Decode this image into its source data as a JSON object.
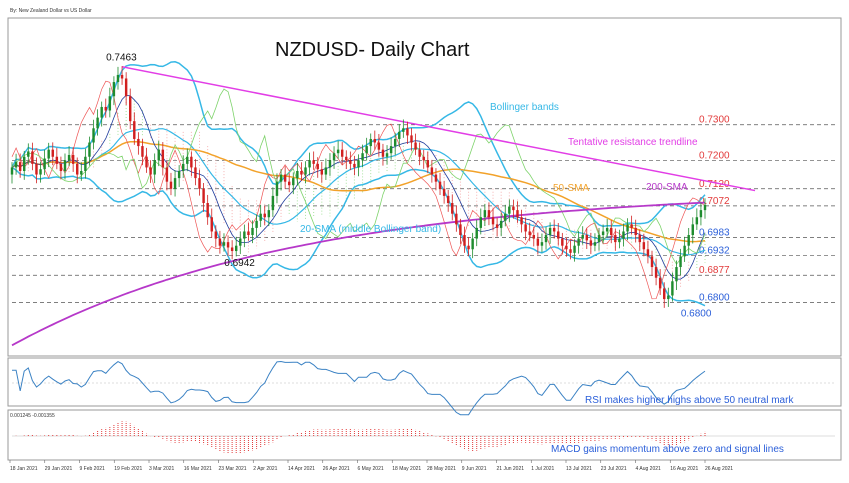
{
  "header": {
    "instrument": "By: New Zealand Dollar vs US Dollar"
  },
  "chart_data": {
    "type": "candlestick",
    "title": "NZDUSD- Daily Chart",
    "price_panel": {
      "ylim": [
        0.665,
        0.76
      ],
      "levels": [
        {
          "value": 0.73,
          "label": "0.7300",
          "color": "#e23b3b"
        },
        {
          "value": 0.72,
          "label": "0.7200",
          "color": "#e23b3b"
        },
        {
          "value": 0.712,
          "label": "0.7120",
          "color": "#e23b3b"
        },
        {
          "value": 0.7072,
          "label": "0.7072",
          "color": "#e23b3b"
        },
        {
          "value": 0.6983,
          "label": "0.6983",
          "color": "#2b5fd9"
        },
        {
          "value": 0.6932,
          "label": "0.6932",
          "color": "#2b5fd9"
        },
        {
          "value": 0.6877,
          "label": "0.6877",
          "color": "#e23b3b"
        },
        {
          "value": 0.68,
          "label": "0.6800",
          "color": "#2b5fd9"
        }
      ],
      "peak_labels": [
        {
          "date_index": 27,
          "value": 0.7463,
          "label": "0.7463"
        },
        {
          "date_index": 56,
          "value": 0.6942,
          "label": "0.6942"
        },
        {
          "date_index": 168,
          "value": 0.68,
          "label": "0.6800"
        }
      ],
      "annotations": {
        "bollinger": "Bollinger bands",
        "resistance": "Tentative resistance trendline",
        "sma50": "50-SMA",
        "sma200": "200-SMA",
        "sma20": "20-SMA (middle Bollinger band)"
      },
      "colors": {
        "bull": "#1e8c2e",
        "bear": "#d11f1f",
        "bollinger": "#36b8e6",
        "sma50": "#f2a22a",
        "sma200": "#b638c9",
        "trend": "#e23de6",
        "cloud": "#f5b3b3",
        "cloud_green": "#a9e3a0"
      }
    },
    "rsi_panel": {
      "annotation": "RSI makes higher highs above 50 neutral mark",
      "color": "#3b82c4"
    },
    "macd_panel": {
      "header": "0.001245 -0.001355",
      "annotation": "MACD gains momentum above zero and signal lines",
      "color": "#e23b3b"
    },
    "x_tick_labels": [
      "18 Jan 2021",
      "29 Jan 2021",
      "9 Feb 2021",
      "19 Feb 2021",
      "3 Mar 2021",
      "16 Mar 2021",
      "23 Mar 2021",
      "2 Apr 2021",
      "14 Apr 2021",
      "26 Apr 2021",
      "6 May 2021",
      "18 May 2021",
      "28 May 2021",
      "9 Jun 2021",
      "21 Jun 2021",
      "1 Jul 2021",
      "13 Jul 2021",
      "23 Jul 2021",
      "4 Aug 2021",
      "16 Aug 2021",
      "26 Aug 2021"
    ],
    "close": [
      0.718,
      0.7195,
      0.717,
      0.721,
      0.7225,
      0.719,
      0.716,
      0.7175,
      0.7205,
      0.723,
      0.721,
      0.719,
      0.717,
      0.72,
      0.7215,
      0.719,
      0.716,
      0.717,
      0.721,
      0.725,
      0.729,
      0.732,
      0.735,
      0.734,
      0.738,
      0.742,
      0.744,
      0.743,
      0.738,
      0.731,
      0.726,
      0.724,
      0.721,
      0.718,
      0.716,
      0.72,
      0.723,
      0.718,
      0.714,
      0.712,
      0.715,
      0.717,
      0.719,
      0.721,
      0.718,
      0.715,
      0.712,
      0.708,
      0.704,
      0.7,
      0.698,
      0.696,
      0.697,
      0.6955,
      0.6945,
      0.696,
      0.698,
      0.7,
      0.699,
      0.701,
      0.703,
      0.705,
      0.704,
      0.706,
      0.71,
      0.714,
      0.716,
      0.714,
      0.713,
      0.715,
      0.717,
      0.716,
      0.718,
      0.72,
      0.719,
      0.7175,
      0.716,
      0.718,
      0.72,
      0.722,
      0.723,
      0.721,
      0.72,
      0.719,
      0.718,
      0.72,
      0.722,
      0.724,
      0.726,
      0.725,
      0.723,
      0.721,
      0.722,
      0.724,
      0.726,
      0.728,
      0.729,
      0.727,
      0.725,
      0.723,
      0.721,
      0.72,
      0.718,
      0.716,
      0.714,
      0.712,
      0.71,
      0.708,
      0.705,
      0.702,
      0.699,
      0.696,
      0.695,
      0.698,
      0.701,
      0.704,
      0.706,
      0.704,
      0.702,
      0.701,
      0.703,
      0.705,
      0.707,
      0.706,
      0.704,
      0.702,
      0.7,
      0.699,
      0.698,
      0.696,
      0.697,
      0.699,
      0.701,
      0.7,
      0.698,
      0.696,
      0.695,
      0.694,
      0.696,
      0.698,
      0.699,
      0.6975,
      0.696,
      0.697,
      0.699,
      0.7,
      0.701,
      0.699,
      0.697,
      0.698,
      0.7,
      0.702,
      0.701,
      0.699,
      0.697,
      0.695,
      0.693,
      0.69,
      0.687,
      0.684,
      0.681,
      0.682,
      0.686,
      0.69,
      0.693,
      0.696,
      0.699,
      0.702,
      0.704,
      0.706,
      0.7075
    ]
  }
}
